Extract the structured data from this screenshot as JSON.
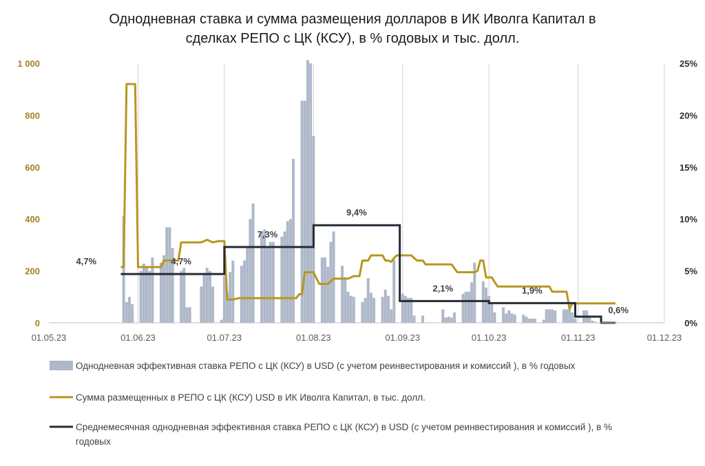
{
  "chart_data": {
    "type": "bar+line",
    "title_lines": [
      "Однодневная ставка и сумма размещения долларов в ИК Иволга Капитал в",
      "сделках РЕПО с ЦК (КСУ), в % годовых и тыс. долл."
    ],
    "x_ticks": [
      "01.05.23",
      "01.06.23",
      "01.07.23",
      "01.08.23",
      "01.09.23",
      "01.10.23",
      "01.11.23",
      "01.12.23"
    ],
    "y_left": {
      "ticks": [
        "0",
        "200",
        "400",
        "600",
        "800",
        "1 000"
      ],
      "range": [
        0,
        1000
      ]
    },
    "y_right": {
      "ticks": [
        "0%",
        "5%",
        "10%",
        "15%",
        "20%",
        "25%"
      ],
      "range": [
        0,
        25
      ]
    },
    "grid": "vertical",
    "colors": {
      "bars": "#aeb8c9",
      "amount": "#b8961f",
      "avg_rate": "#252a36"
    },
    "legend": {
      "position": "bottom",
      "items": [
        {
          "key": "bars",
          "label": "Однодневная эффективная ставка РЕПО с ЦК (КСУ) в USD (с учетом реинвестирования и комиссий ), в % годовых"
        },
        {
          "key": "amount",
          "label": "Сумма размещенных в РЕПО с ЦК (КСУ) USD в ИК Иволга Капитал, в тыс. долл."
        },
        {
          "key": "avg_rate",
          "label_lines": [
            "Среднемесячная однодневная эффективная ставка РЕПО с ЦК (КСУ) в USD (с учетом реинвестирования и комиссий ), в %",
            "годовых"
          ]
        }
      ]
    },
    "series": [
      {
        "key": "bars",
        "axis": "right",
        "type": "bar",
        "points": [
          [
            0,
            0
          ],
          [
            1,
            0
          ],
          [
            4,
            0
          ],
          [
            5,
            0
          ],
          [
            6,
            0
          ],
          [
            7,
            0
          ],
          [
            8,
            0
          ],
          [
            11,
            0
          ],
          [
            12,
            0
          ],
          [
            13,
            0
          ],
          [
            14,
            0
          ],
          [
            15,
            0
          ],
          [
            18,
            0
          ],
          [
            19,
            0
          ],
          [
            20,
            0
          ],
          [
            21,
            0
          ],
          [
            22,
            0
          ],
          [
            25,
            0
          ],
          [
            26,
            10.3
          ],
          [
            27,
            2.0
          ],
          [
            28,
            2.5
          ],
          [
            29,
            1.8
          ],
          [
            32,
            5.0
          ],
          [
            33,
            5.7
          ],
          [
            34,
            5.3
          ],
          [
            35,
            5.0
          ],
          [
            36,
            6.3
          ],
          [
            39,
            5.8
          ],
          [
            40,
            6.5
          ],
          [
            41,
            9.2
          ],
          [
            42,
            9.2
          ],
          [
            43,
            7.2
          ],
          [
            46,
            5.0
          ],
          [
            47,
            5.3
          ],
          [
            48,
            1.5
          ],
          [
            49,
            1.5
          ],
          [
            53,
            3.5
          ],
          [
            54,
            4.8
          ],
          [
            55,
            5.3
          ],
          [
            56,
            5.0
          ],
          [
            57,
            3.5
          ],
          [
            60,
            0.3
          ],
          [
            61,
            4.5
          ],
          [
            62,
            2.9
          ],
          [
            63,
            4.9
          ],
          [
            64,
            6.0
          ],
          [
            67,
            5.5
          ],
          [
            68,
            6.0
          ],
          [
            69,
            7.4
          ],
          [
            70,
            10.0
          ],
          [
            71,
            11.5
          ],
          [
            74,
            8.8
          ],
          [
            75,
            9.0
          ],
          [
            76,
            7.3
          ],
          [
            77,
            7.8
          ],
          [
            78,
            7.8
          ],
          [
            81,
            8.3
          ],
          [
            82,
            8.8
          ],
          [
            83,
            9.8
          ],
          [
            84,
            10.0
          ],
          [
            85,
            15.8
          ],
          [
            88,
            21.4
          ],
          [
            89,
            21.4
          ],
          [
            90,
            25.3
          ],
          [
            91,
            25.0
          ],
          [
            92,
            18.0
          ],
          [
            95,
            6.3
          ],
          [
            96,
            6.3
          ],
          [
            97,
            5.4
          ],
          [
            98,
            7.8
          ],
          [
            99,
            8.8
          ],
          [
            102,
            5.5
          ],
          [
            103,
            4.4
          ],
          [
            104,
            3.0
          ],
          [
            105,
            2.6
          ],
          [
            106,
            2.5
          ],
          [
            109,
            2.0
          ],
          [
            110,
            2.4
          ],
          [
            111,
            4.3
          ],
          [
            112,
            2.9
          ],
          [
            113,
            2.4
          ],
          [
            116,
            2.5
          ],
          [
            117,
            3.2
          ],
          [
            118,
            2.6
          ],
          [
            119,
            1.3
          ],
          [
            120,
            6.1
          ],
          [
            123,
            2.8
          ],
          [
            124,
            2.6
          ],
          [
            125,
            2.4
          ],
          [
            126,
            2.4
          ],
          [
            127,
            0.7
          ],
          [
            130,
            0.7
          ],
          [
            131,
            0
          ],
          [
            132,
            0
          ],
          [
            133,
            0
          ],
          [
            134,
            0
          ],
          [
            137,
            1.3
          ],
          [
            138,
            0.5
          ],
          [
            139,
            0.6
          ],
          [
            140,
            0.5
          ],
          [
            141,
            1.0
          ],
          [
            144,
            2.8
          ],
          [
            145,
            3.0
          ],
          [
            146,
            3.0
          ],
          [
            147,
            3.9
          ],
          [
            148,
            5.8
          ],
          [
            151,
            4.0
          ],
          [
            152,
            3.4
          ],
          [
            153,
            2.6
          ],
          [
            154,
            1.8
          ],
          [
            155,
            1.0
          ],
          [
            158,
            1.5
          ],
          [
            159,
            0.9
          ],
          [
            160,
            1.2
          ],
          [
            161,
            0.9
          ],
          [
            162,
            0.8
          ],
          [
            165,
            0.8
          ],
          [
            166,
            0.6
          ],
          [
            167,
            0.4
          ],
          [
            168,
            0.4
          ],
          [
            169,
            0.4
          ],
          [
            172,
            0.3
          ],
          [
            173,
            1.3
          ],
          [
            174,
            1.3
          ],
          [
            175,
            1.3
          ],
          [
            176,
            1.2
          ],
          [
            179,
            1.3
          ],
          [
            180,
            1.3
          ],
          [
            181,
            1.4
          ],
          [
            182,
            1.0
          ],
          [
            183,
            0.4
          ],
          [
            186,
            1.2
          ],
          [
            187,
            1.2
          ],
          [
            188,
            0.5
          ],
          [
            189,
            0.2
          ],
          [
            190,
            0.1
          ],
          [
            193,
            0.1
          ],
          [
            194,
            0.1
          ],
          [
            195,
            0.1
          ],
          [
            196,
            0.1
          ],
          [
            197,
            0.1
          ]
        ]
      },
      {
        "key": "amount",
        "axis": "left",
        "type": "line",
        "points": [
          [
            25,
            215
          ],
          [
            26,
            215
          ],
          [
            27,
            920
          ],
          [
            30,
            920
          ],
          [
            31,
            215
          ],
          [
            33,
            215
          ],
          [
            35,
            215
          ],
          [
            39,
            215
          ],
          [
            40,
            240
          ],
          [
            45,
            240
          ],
          [
            46,
            310
          ],
          [
            53,
            310
          ],
          [
            55,
            320
          ],
          [
            57,
            310
          ],
          [
            59,
            315
          ],
          [
            61,
            315
          ],
          [
            62,
            90
          ],
          [
            64,
            90
          ],
          [
            66,
            95
          ],
          [
            85,
            95
          ],
          [
            86,
            95
          ],
          [
            87,
            110
          ],
          [
            88,
            110
          ],
          [
            89,
            195
          ],
          [
            92,
            195
          ],
          [
            94,
            150
          ],
          [
            97,
            150
          ],
          [
            99,
            170
          ],
          [
            104,
            170
          ],
          [
            106,
            180
          ],
          [
            108,
            180
          ],
          [
            109,
            240
          ],
          [
            110,
            240
          ],
          [
            111,
            240
          ],
          [
            112,
            260
          ],
          [
            116,
            260
          ],
          [
            117,
            240
          ],
          [
            118,
            240
          ],
          [
            119,
            235
          ],
          [
            120,
            250
          ],
          [
            121,
            260
          ],
          [
            126,
            260
          ],
          [
            128,
            240
          ],
          [
            130,
            240
          ],
          [
            131,
            225
          ],
          [
            140,
            225
          ],
          [
            142,
            195
          ],
          [
            148,
            195
          ],
          [
            149,
            200
          ],
          [
            150,
            240
          ],
          [
            151,
            240
          ],
          [
            152,
            175
          ],
          [
            154,
            175
          ],
          [
            156,
            140
          ],
          [
            174,
            140
          ],
          [
            175,
            120
          ],
          [
            180,
            120
          ],
          [
            181,
            55
          ],
          [
            182,
            75
          ],
          [
            197,
            75
          ]
        ]
      },
      {
        "key": "avg_rate",
        "axis": "right",
        "type": "step",
        "points": [
          [
            25,
            4.7
          ],
          [
            61,
            4.7
          ],
          [
            61,
            7.3
          ],
          [
            92,
            7.3
          ],
          [
            92,
            9.4
          ],
          [
            122,
            9.4
          ],
          [
            122,
            2.1
          ],
          [
            153,
            2.1
          ],
          [
            153,
            1.9
          ],
          [
            183,
            1.9
          ],
          [
            183,
            0.6
          ],
          [
            192,
            0.6
          ],
          [
            192,
            0.0
          ],
          [
            197,
            0.0
          ]
        ]
      }
    ],
    "data_labels": [
      {
        "series": "avg_rate",
        "x": 13,
        "text": "4,7%"
      },
      {
        "series": "avg_rate",
        "x": 46,
        "text": "4,7%"
      },
      {
        "series": "avg_rate",
        "x": 76,
        "text": "7,3%"
      },
      {
        "series": "avg_rate",
        "x": 107,
        "text": "9,4%"
      },
      {
        "series": "avg_rate",
        "x": 137,
        "text": "2,1%"
      },
      {
        "series": "avg_rate",
        "x": 168,
        "text": "1,9%"
      },
      {
        "series": "avg_rate",
        "x": 198,
        "text": "0,6%"
      }
    ]
  }
}
